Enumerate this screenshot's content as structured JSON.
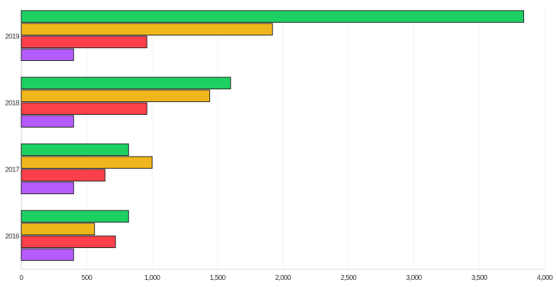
{
  "chart_data": {
    "type": "bar",
    "orientation": "horizontal",
    "categories": [
      "2019",
      "2018",
      "2017",
      "2016"
    ],
    "series": [
      {
        "color": "#1ecf62",
        "values": [
          3840,
          1600,
          820,
          820
        ]
      },
      {
        "color": "#f0b71c",
        "values": [
          1920,
          1440,
          1000,
          560
        ]
      },
      {
        "color": "#fb4049",
        "values": [
          960,
          960,
          640,
          720
        ]
      },
      {
        "color": "#b55cff",
        "values": [
          400,
          400,
          400,
          400
        ]
      }
    ],
    "xlim": [
      0,
      4000
    ],
    "xticks": [
      0,
      500,
      1000,
      1500,
      2000,
      2500,
      3000,
      3500,
      4000
    ],
    "xtick_labels": [
      "0",
      "500",
      "1,000",
      "1,500",
      "2,000",
      "2,500",
      "3,000",
      "3,500",
      "4,000"
    ],
    "grid": true,
    "legend": "none",
    "title": "",
    "xlabel": "",
    "ylabel": ""
  }
}
